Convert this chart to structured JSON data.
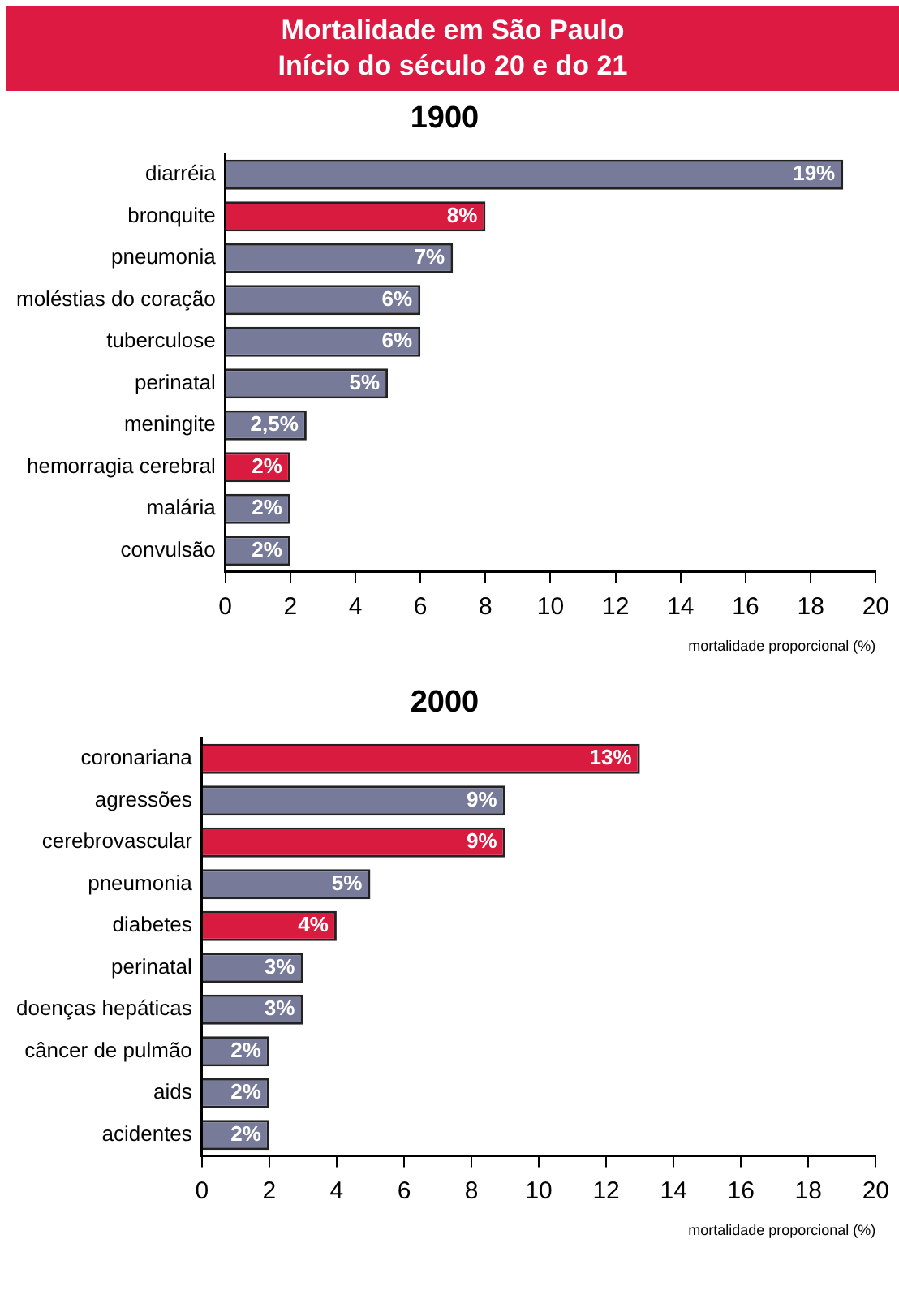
{
  "chart_data": [
    {
      "type": "other",
      "title": "Mortalidade em São Paulo",
      "subtitle": "Início do século 20 e do 21"
    },
    {
      "type": "bar",
      "orientation": "horizontal",
      "title": "1900",
      "categories": [
        "diarréia",
        "bronquite",
        "pneumonia",
        "moléstias do coração",
        "tuberculose",
        "perinatal",
        "meningite",
        "hemorragia cerebral",
        "malária",
        "convulsão"
      ],
      "values": [
        19,
        8,
        7,
        6,
        6,
        5,
        2.5,
        2,
        2,
        2
      ],
      "colors": [
        "#777a99",
        "#d81b3f",
        "#777a99",
        "#777a99",
        "#777a99",
        "#777a99",
        "#777a99",
        "#d81b3f",
        "#777a99",
        "#777a99"
      ],
      "value_labels": [
        "19%",
        "8%",
        "7%",
        "6%",
        "6%",
        "5%",
        "2,5%",
        "2%",
        "2%",
        "2%"
      ],
      "xlabel": "mortalidade proporcional (%)",
      "xlim": [
        0,
        20
      ],
      "xticks": [
        0,
        2,
        4,
        6,
        8,
        10,
        12,
        14,
        16,
        18,
        20
      ],
      "grid": false
    },
    {
      "type": "bar",
      "orientation": "horizontal",
      "title": "2000",
      "categories": [
        "coronariana",
        "agressões",
        "cerebrovascular",
        "pneumonia",
        "diabetes",
        "perinatal",
        "doenças hepáticas",
        "câncer de pulmão",
        "aids",
        "acidentes"
      ],
      "values": [
        13,
        9,
        9,
        5,
        4,
        3,
        3,
        2,
        2,
        2
      ],
      "colors": [
        "#d81b3f",
        "#777a99",
        "#d81b3f",
        "#777a99",
        "#d81b3f",
        "#777a99",
        "#777a99",
        "#777a99",
        "#777a99",
        "#777a99"
      ],
      "value_labels": [
        "13%",
        "9%",
        "9%",
        "5%",
        "4%",
        "3%",
        "3%",
        "2%",
        "2%",
        "2%"
      ],
      "xlabel": "mortalidade proporcional (%)",
      "xlim": [
        0,
        20
      ],
      "xticks": [
        0,
        2,
        4,
        6,
        8,
        10,
        12,
        14,
        16,
        18,
        20
      ],
      "grid": false
    }
  ]
}
